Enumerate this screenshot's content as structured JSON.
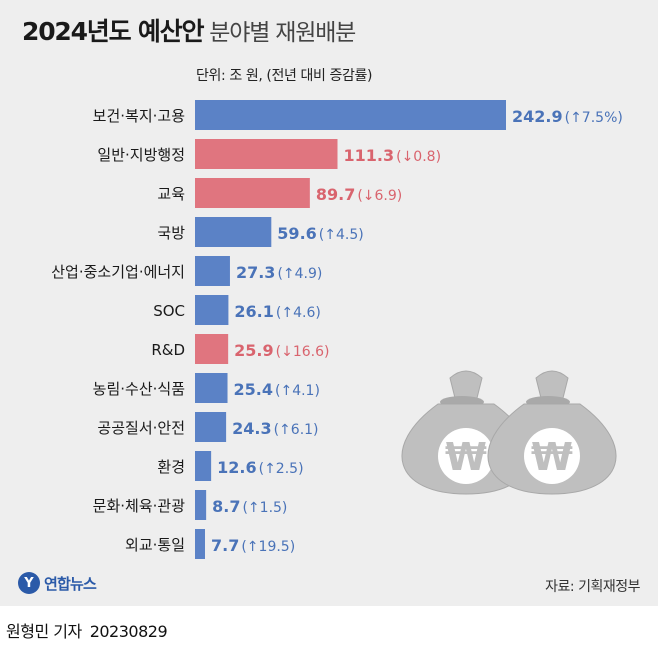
{
  "header": {
    "title_main": "2024년도 예산안",
    "title_sub": "분야별 재원배분",
    "unit": "단위: 조 원, (전년 대비 증감률)"
  },
  "colors": {
    "increase": "#5b82c6",
    "decrease": "#e0757f",
    "increase_text": "#4a73b8",
    "decrease_text": "#d9646e",
    "background": "#eeeeee",
    "moneybag": "#bfbfbf"
  },
  "chart_data": {
    "type": "bar",
    "orientation": "horizontal",
    "categories": [
      "보건·복지·고용",
      "일반·지방행정",
      "교육",
      "국방",
      "산업·중소기업·에너지",
      "SOC",
      "R&D",
      "농림·수산·식품",
      "공공질서·안전",
      "환경",
      "문화·체육·관광",
      "외교·통일"
    ],
    "values": [
      242.9,
      111.3,
      89.7,
      59.6,
      27.3,
      26.1,
      25.9,
      25.4,
      24.3,
      12.6,
      8.7,
      7.7
    ],
    "value_labels": [
      "242.9",
      "111.3",
      "89.7",
      "59.6",
      "27.3",
      "26.1",
      "25.9",
      "25.4",
      "24.3",
      "12.6",
      "8.7",
      "7.7"
    ],
    "change_labels": [
      "(↑7.5%)",
      "(↓0.8)",
      "(↓6.9)",
      "(↑4.5)",
      "(↑4.9)",
      "(↑4.6)",
      "(↓16.6)",
      "(↑4.1)",
      "(↑6.1)",
      "(↑2.5)",
      "(↑1.5)",
      "(↑19.5)"
    ],
    "direction": [
      "up",
      "down",
      "down",
      "up",
      "up",
      "up",
      "down",
      "up",
      "up",
      "up",
      "up",
      "up"
    ],
    "xlim": [
      0,
      250
    ]
  },
  "footer": {
    "logo_text": "연합뉴스",
    "source": "자료: 기획재정부",
    "reporter": "원형민 기자",
    "date": "20230829"
  }
}
